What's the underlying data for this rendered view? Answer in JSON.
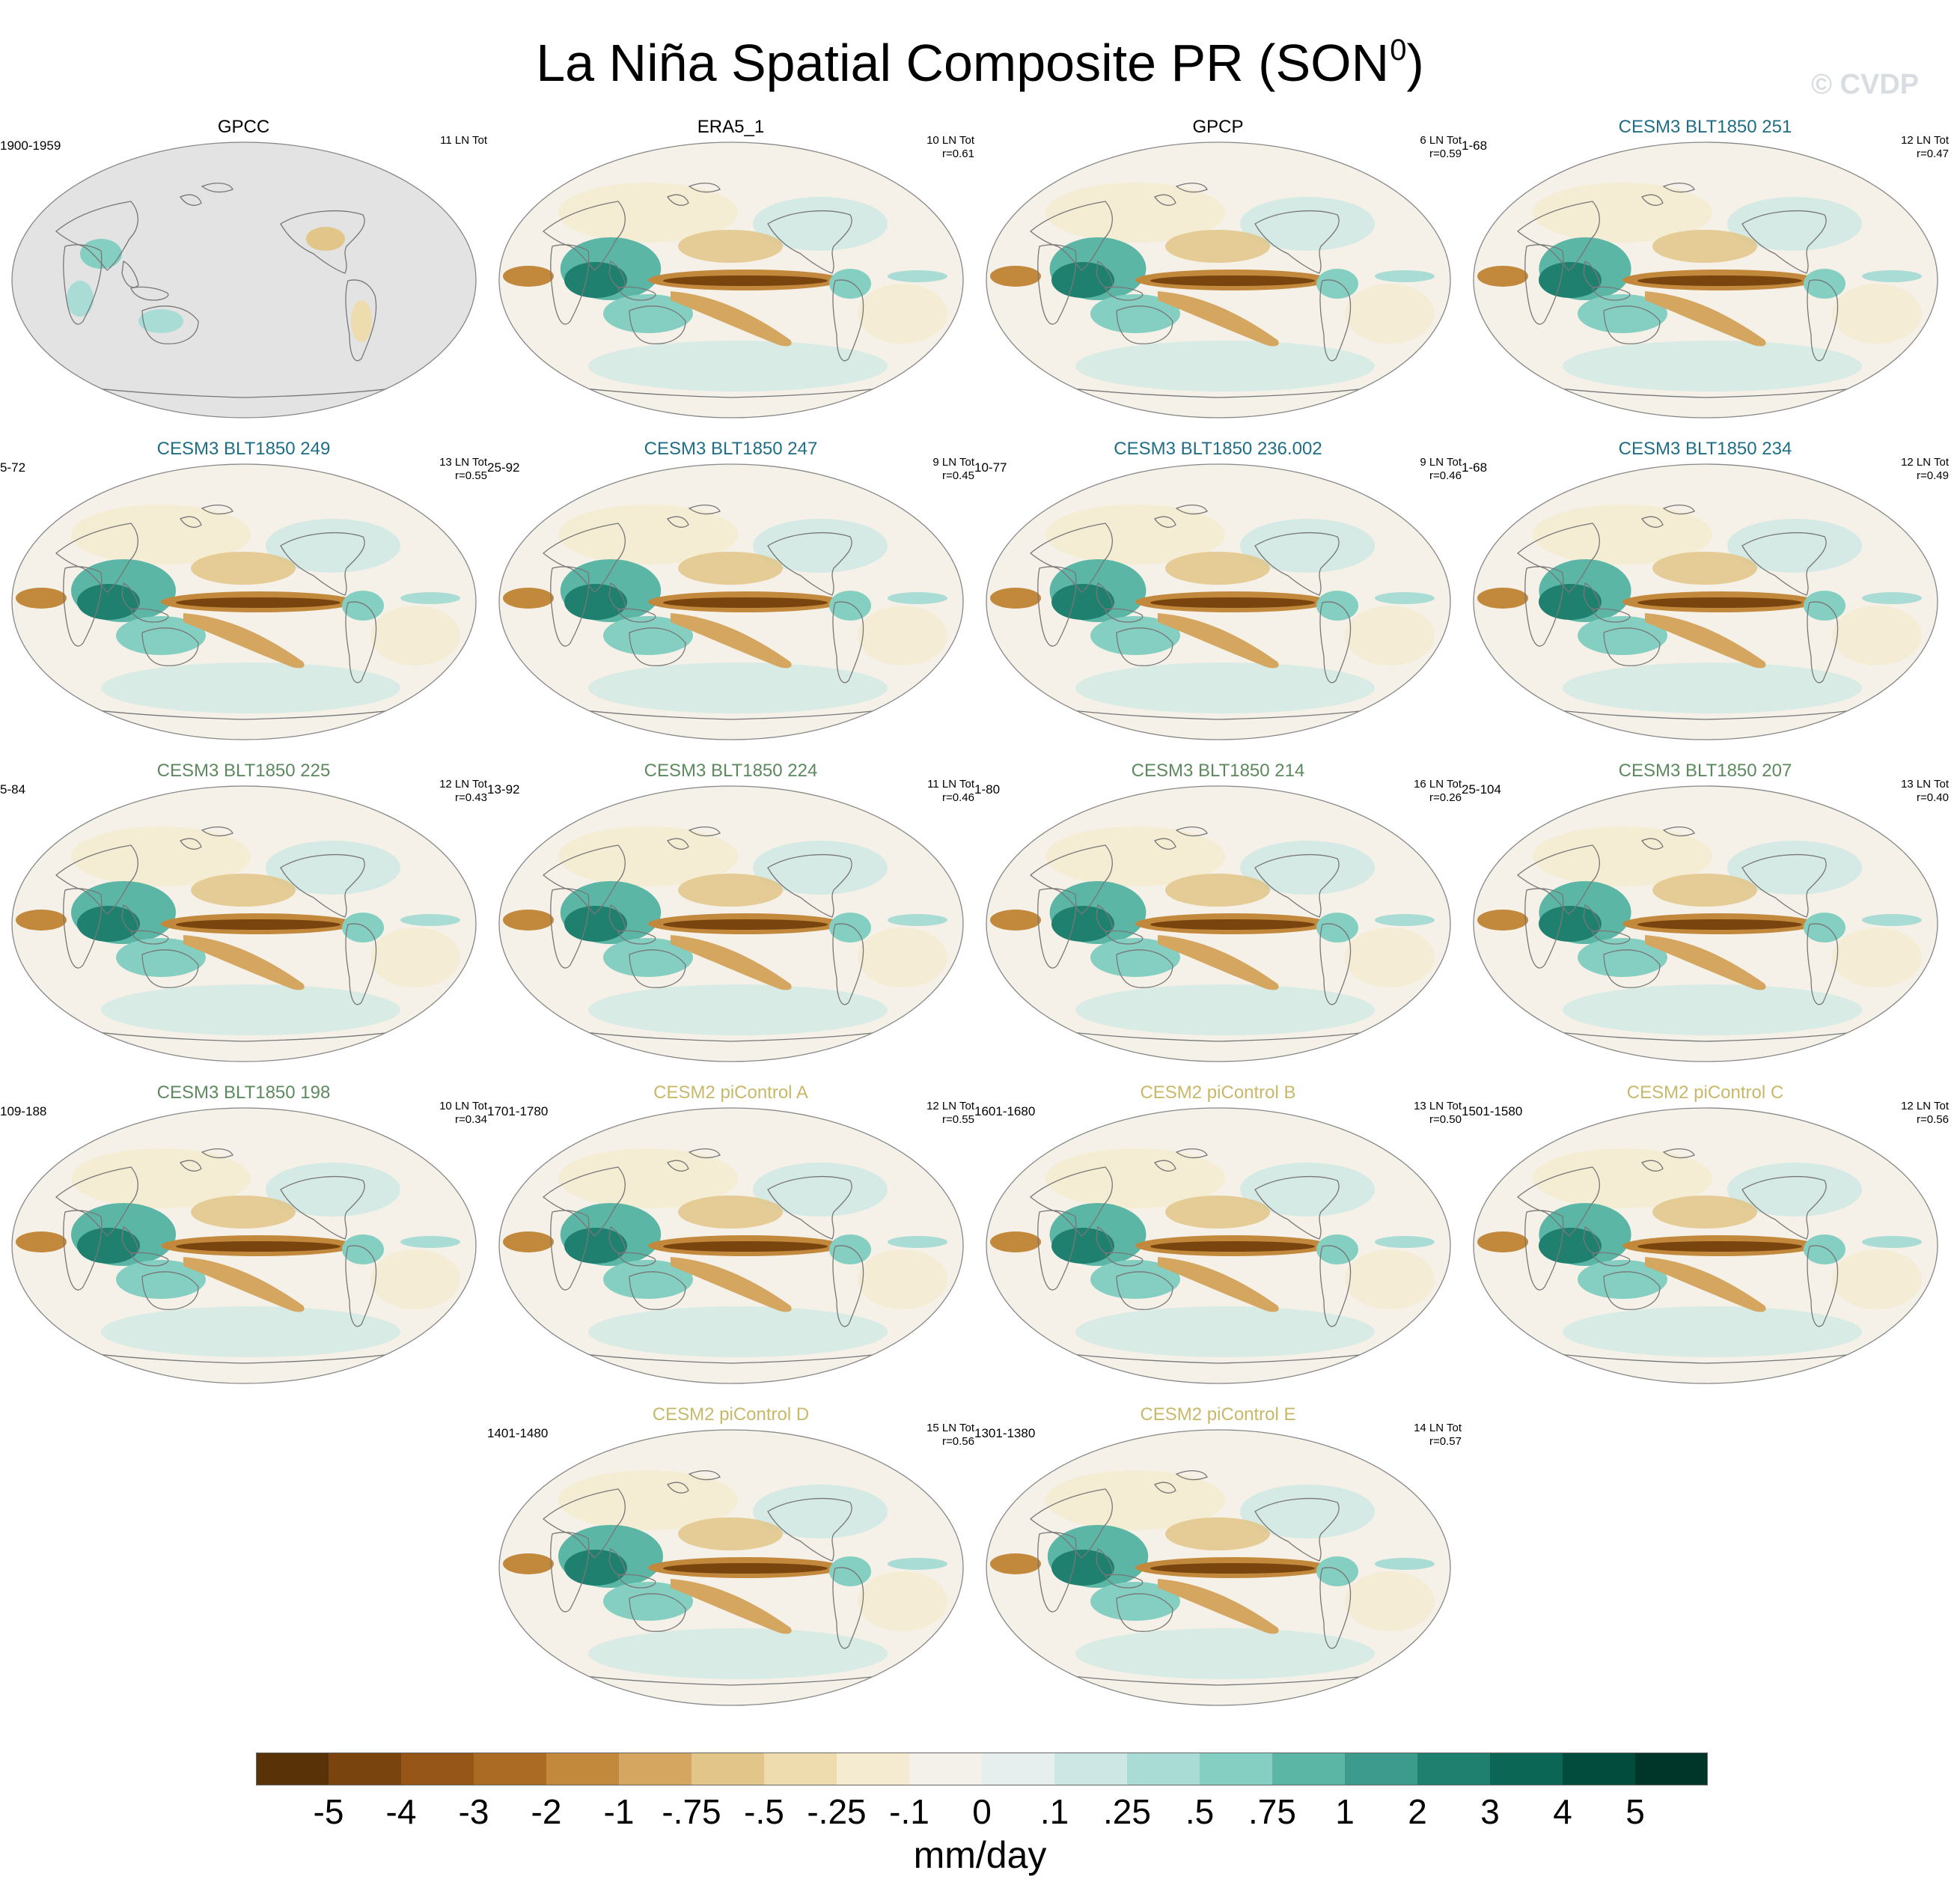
{
  "title": "La Niña Spatial Composite PR (SON",
  "title_superscript": "0",
  "title_suffix": ")",
  "watermark": "© CVDP",
  "panels": [
    {
      "title": "GPCC",
      "years": "1900-1959",
      "stats": [
        "11 LN Tot"
      ],
      "title_color": "#000000",
      "land_only": true
    },
    {
      "title": "ERA5_1",
      "years": "",
      "stats": [
        "10 LN Tot",
        "r=0.61"
      ],
      "title_color": "#000000",
      "land_only": false
    },
    {
      "title": "GPCP",
      "years": "",
      "stats": [
        "6 LN Tot",
        "r=0.59"
      ],
      "title_color": "#000000",
      "land_only": false
    },
    {
      "title": "CESM3 BLT1850 251",
      "years": "1-68",
      "stats": [
        "12 LN Tot",
        "r=0.47"
      ],
      "title_color": "#1f6e86",
      "land_only": false
    },
    {
      "title": "CESM3 BLT1850 249",
      "years": "5-72",
      "stats": [
        "13 LN Tot",
        "r=0.55"
      ],
      "title_color": "#1f6e86",
      "land_only": false
    },
    {
      "title": "CESM3 BLT1850 247",
      "years": "25-92",
      "stats": [
        "9 LN Tot",
        "r=0.45"
      ],
      "title_color": "#1f6e86",
      "land_only": false
    },
    {
      "title": "CESM3 BLT1850 236.002",
      "years": "10-77",
      "stats": [
        "9 LN Tot",
        "r=0.46"
      ],
      "title_color": "#1f6e86",
      "land_only": false
    },
    {
      "title": "CESM3 BLT1850 234",
      "years": "1-68",
      "stats": [
        "12 LN Tot",
        "r=0.49"
      ],
      "title_color": "#1f6e86",
      "land_only": false
    },
    {
      "title": "CESM3 BLT1850 225",
      "years": "5-84",
      "stats": [
        "12 LN Tot",
        "r=0.43"
      ],
      "title_color": "#5c8a5e",
      "land_only": false
    },
    {
      "title": "CESM3 BLT1850 224",
      "years": "13-92",
      "stats": [
        "11 LN Tot",
        "r=0.46"
      ],
      "title_color": "#5c8a5e",
      "land_only": false
    },
    {
      "title": "CESM3 BLT1850 214",
      "years": "1-80",
      "stats": [
        "16 LN Tot",
        "r=0.26"
      ],
      "title_color": "#5c8a5e",
      "land_only": false
    },
    {
      "title": "CESM3 BLT1850 207",
      "years": "25-104",
      "stats": [
        "13 LN Tot",
        "r=0.40"
      ],
      "title_color": "#5c8a5e",
      "land_only": false
    },
    {
      "title": "CESM3 BLT1850 198",
      "years": "109-188",
      "stats": [
        "10 LN Tot",
        "r=0.34"
      ],
      "title_color": "#5c8a5e",
      "land_only": false
    },
    {
      "title": "CESM2 piControl A",
      "years": "1701-1780",
      "stats": [
        "12 LN Tot",
        "r=0.55"
      ],
      "title_color": "#c8b86a",
      "land_only": false
    },
    {
      "title": "CESM2 piControl B",
      "years": "1601-1680",
      "stats": [
        "13 LN Tot",
        "r=0.50"
      ],
      "title_color": "#c8b86a",
      "land_only": false
    },
    {
      "title": "CESM2 piControl C",
      "years": "1501-1580",
      "stats": [
        "12 LN Tot",
        "r=0.56"
      ],
      "title_color": "#c8b86a",
      "land_only": false
    },
    {
      "title": "CESM2 piControl D",
      "years": "1401-1480",
      "stats": [
        "15 LN Tot",
        "r=0.56"
      ],
      "title_color": "#c8b86a",
      "land_only": false
    },
    {
      "title": "CESM2 piControl E",
      "years": "1301-1380",
      "stats": [
        "14 LN Tot",
        "r=0.57"
      ],
      "title_color": "#c8b86a",
      "land_only": false
    }
  ],
  "colorbar": {
    "labels": [
      "-5",
      "-4",
      "-3",
      "-2",
      "-1",
      "-.75",
      "-.5",
      "-.25",
      "-.1",
      "0",
      ".1",
      ".25",
      ".5",
      ".75",
      "1",
      "2",
      "3",
      "4",
      "5"
    ],
    "colors": [
      "#5a3208",
      "#7a440e",
      "#955617",
      "#ab6b25",
      "#c2883c",
      "#d4a660",
      "#e2c588",
      "#eedcaf",
      "#f5ebd1",
      "#f4f1ea",
      "#e6efed",
      "#cde8e4",
      "#a9dcd4",
      "#84cfc1",
      "#5cb6a6",
      "#3c9b8c",
      "#1f8070",
      "#0b6656",
      "#024c3e",
      "#00352a"
    ],
    "units": "mm/day"
  }
}
